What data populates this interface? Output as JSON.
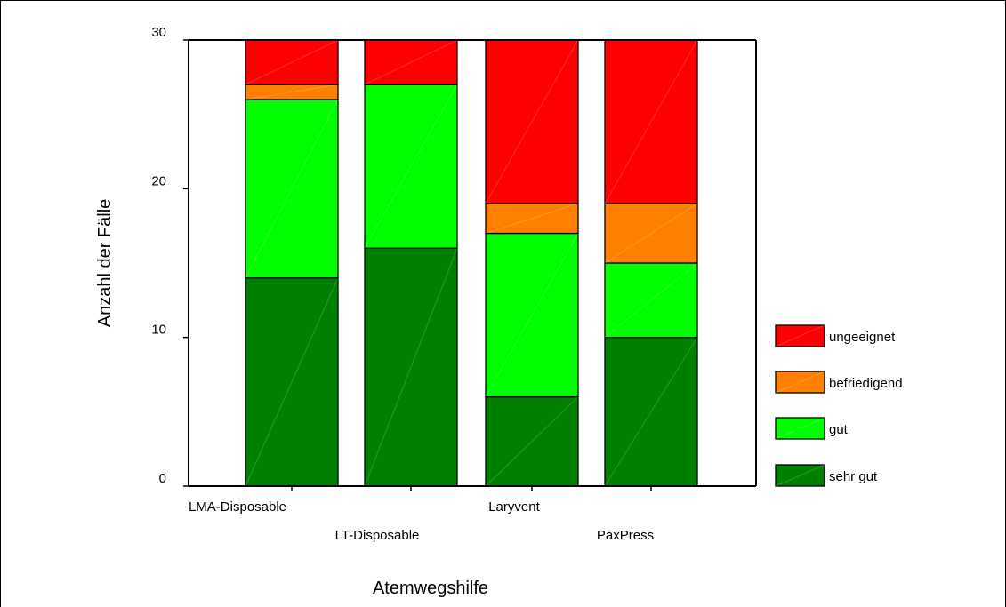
{
  "chart_data": {
    "type": "bar",
    "stacked": true,
    "categories": [
      "LMA-Disposable",
      "LT-Disposable",
      "Laryvent",
      "PaxPress"
    ],
    "series": [
      {
        "name": "sehr gut",
        "color": "#008000",
        "values": [
          14,
          16,
          6,
          10
        ]
      },
      {
        "name": "gut",
        "color": "#00ff00",
        "values": [
          12,
          11,
          11,
          5
        ]
      },
      {
        "name": "befriedigend",
        "color": "#ff8000",
        "values": [
          1,
          0,
          2,
          4
        ]
      },
      {
        "name": "ungeeignet",
        "color": "#ff0000",
        "values": [
          3,
          3,
          11,
          11
        ]
      }
    ],
    "legend_order": [
      "ungeeignet",
      "befriedigend",
      "gut",
      "sehr gut"
    ],
    "xlabel": "Atemwegshilfe",
    "ylabel": "Anzahl der Fälle",
    "yticks": [
      0,
      10,
      20,
      30
    ],
    "ylim": [
      0,
      30
    ],
    "grid": false,
    "legend_position": "right"
  }
}
